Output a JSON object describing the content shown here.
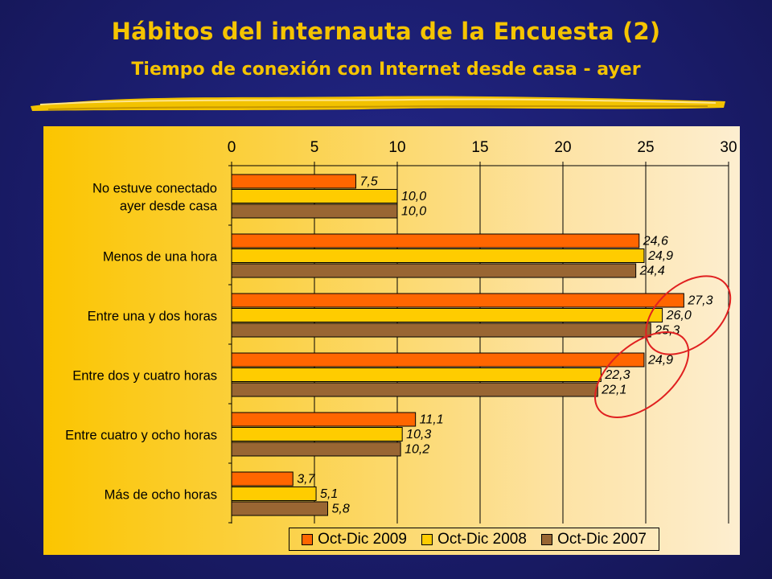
{
  "slide": {
    "title": "Hábitos del internauta de la Encuesta (2)",
    "subtitle": "Tiempo de conexión con Internet desde casa - ayer"
  },
  "chart_data": {
    "type": "bar",
    "orientation": "horizontal",
    "title": "",
    "xlabel": "",
    "ylabel": "",
    "xlim": [
      0,
      30
    ],
    "x_ticks": [
      "0",
      "5",
      "10",
      "15",
      "20",
      "25",
      "30"
    ],
    "axis_position": "top",
    "grid": true,
    "legend_position": "bottom",
    "categories": [
      [
        "No estuve conectado",
        "ayer desde casa"
      ],
      [
        "Menos de una hora"
      ],
      [
        "Entre una y dos horas"
      ],
      [
        "Entre dos y cuatro horas"
      ],
      [
        "Entre cuatro y ocho horas"
      ],
      [
        "Más de ocho horas"
      ]
    ],
    "series": [
      {
        "name": "Oct-Dic 2009",
        "color": "#ff6600",
        "values": [
          7.5,
          24.6,
          27.3,
          24.9,
          11.1,
          3.7
        ],
        "labels": [
          "7,5",
          "24,6",
          "27,3",
          "24,9",
          "11,1",
          "3,7"
        ]
      },
      {
        "name": "Oct-Dic 2008",
        "color": "#ffcc00",
        "values": [
          10.0,
          24.9,
          26.0,
          22.3,
          10.3,
          5.1
        ],
        "labels": [
          "10,0",
          "24,9",
          "26,0",
          "22,3",
          "10,3",
          "5,1"
        ]
      },
      {
        "name": "Oct-Dic 2007",
        "color": "#996633",
        "values": [
          10.0,
          24.4,
          25.3,
          22.1,
          10.2,
          5.8
        ],
        "labels": [
          "10,0",
          "24,4",
          "25,3",
          "22,1",
          "10,2",
          "5,8"
        ]
      }
    ],
    "highlight_color": "#e02020",
    "highlighted_groups": [
      2,
      3
    ]
  }
}
